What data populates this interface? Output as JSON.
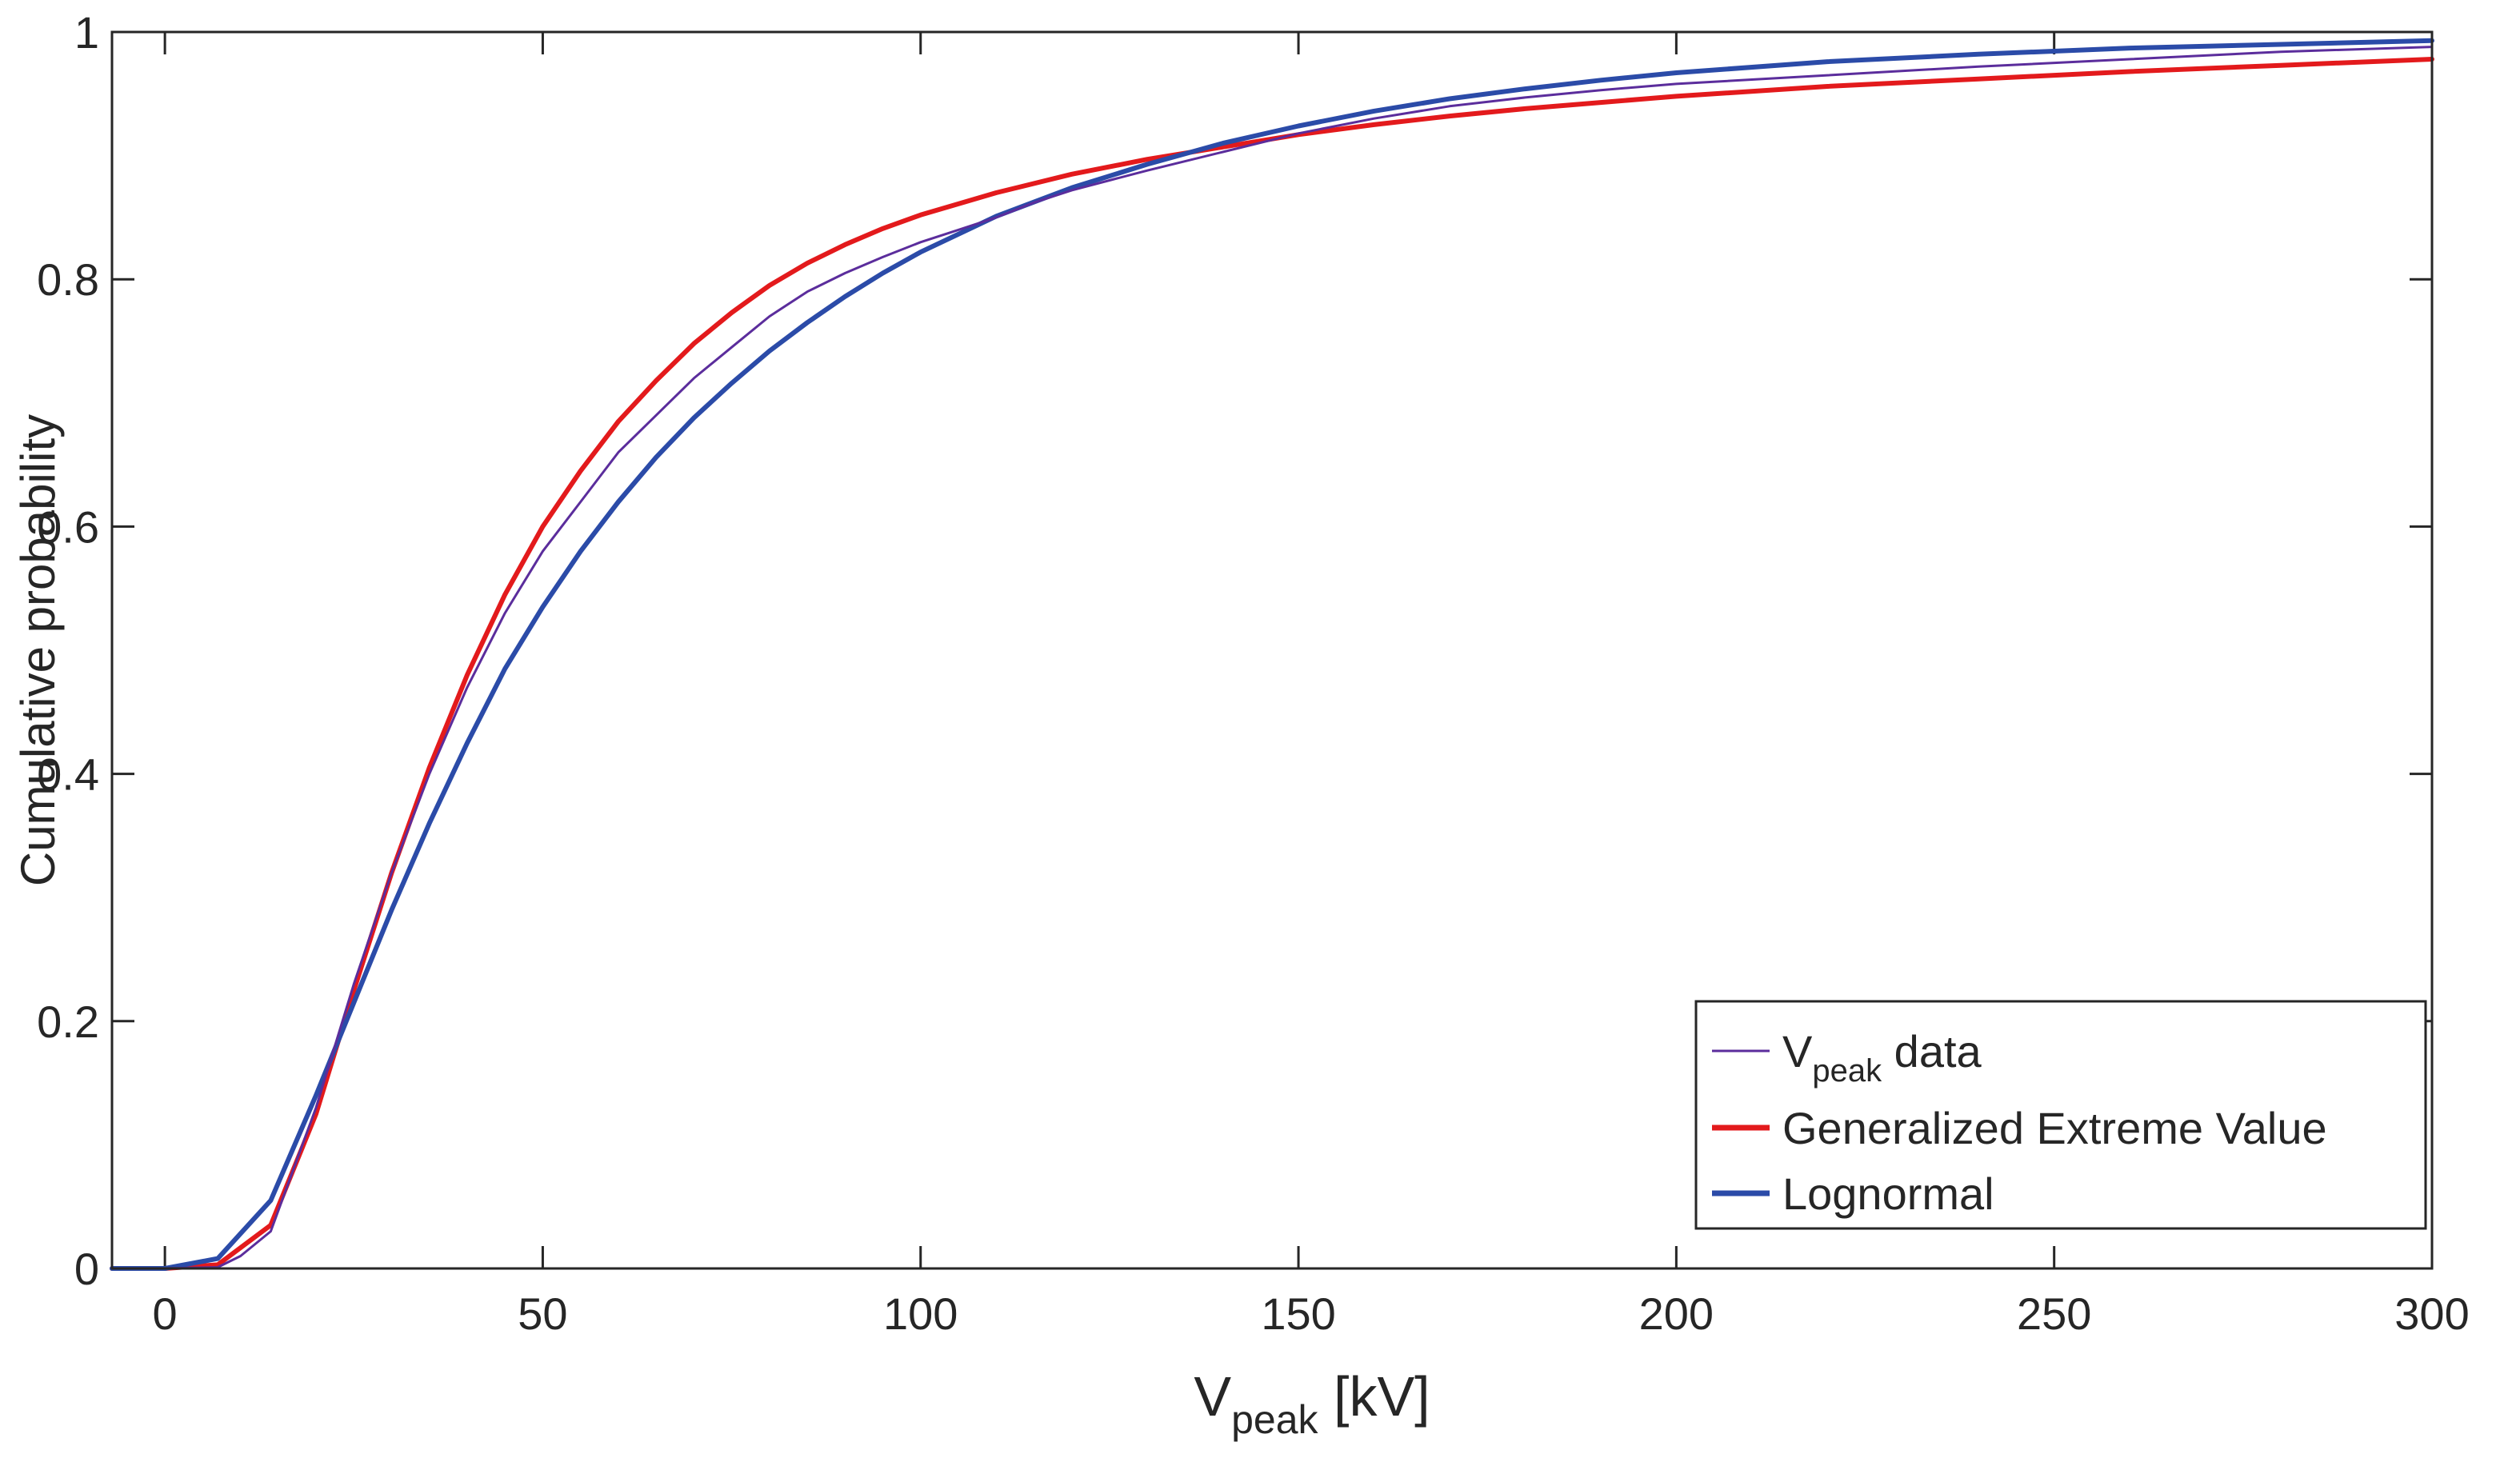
{
  "chart_data": {
    "type": "line",
    "xlabel": {
      "main": "V",
      "sub": "peak",
      "rest": " [kV]"
    },
    "ylabel": "Cumulative probability",
    "xlim": [
      -7,
      300
    ],
    "ylim": [
      0,
      1
    ],
    "xticks": [
      0,
      50,
      100,
      150,
      200,
      250,
      300
    ],
    "yticks": [
      0,
      0.2,
      0.4,
      0.6,
      0.8,
      1
    ],
    "ytick_labels": [
      "0",
      "0.2",
      "0.4",
      "0.6",
      "0.8",
      "1"
    ],
    "legend": {
      "location": "bottom-right",
      "entries": [
        {
          "main": "V",
          "sub": "peak",
          "rest": " data"
        },
        {
          "main": "Generalized Extreme Value",
          "sub": "",
          "rest": ""
        },
        {
          "main": "Lognormal",
          "sub": "",
          "rest": ""
        }
      ]
    },
    "series": [
      {
        "name": "Vpeak data",
        "color": "#5b2d9c",
        "width": "thin",
        "x": [
          -7,
          0,
          7,
          10,
          14,
          20,
          25,
          30,
          35,
          40,
          45,
          50,
          55,
          60,
          65,
          70,
          75,
          80,
          85,
          90,
          95,
          100,
          105,
          110,
          115,
          120,
          125,
          130,
          140,
          150,
          160,
          170,
          180,
          190,
          200,
          220,
          240,
          260,
          280,
          300
        ],
        "y": [
          0,
          0,
          0.001,
          0.01,
          0.03,
          0.13,
          0.23,
          0.32,
          0.4,
          0.47,
          0.53,
          0.58,
          0.62,
          0.66,
          0.69,
          0.72,
          0.745,
          0.77,
          0.79,
          0.805,
          0.818,
          0.83,
          0.84,
          0.85,
          0.862,
          0.872,
          0.88,
          0.888,
          0.903,
          0.918,
          0.93,
          0.94,
          0.947,
          0.953,
          0.958,
          0.965,
          0.972,
          0.978,
          0.984,
          0.988
        ]
      },
      {
        "name": "Generalized Extreme Value",
        "color": "#e31a1c",
        "width": "thick",
        "x": [
          -7,
          0,
          7,
          14,
          20,
          25,
          30,
          35,
          40,
          45,
          50,
          55,
          60,
          65,
          70,
          75,
          80,
          85,
          90,
          95,
          100,
          110,
          120,
          130,
          140,
          150,
          160,
          170,
          180,
          190,
          200,
          220,
          240,
          260,
          280,
          300
        ],
        "y": [
          0,
          0,
          0.003,
          0.035,
          0.125,
          0.225,
          0.32,
          0.405,
          0.48,
          0.545,
          0.6,
          0.645,
          0.685,
          0.718,
          0.748,
          0.773,
          0.795,
          0.813,
          0.828,
          0.841,
          0.852,
          0.87,
          0.885,
          0.897,
          0.907,
          0.917,
          0.925,
          0.932,
          0.938,
          0.943,
          0.948,
          0.956,
          0.962,
          0.968,
          0.973,
          0.978
        ]
      },
      {
        "name": "Lognormal",
        "color": "#2b4ba8",
        "width": "thick",
        "x": [
          -7,
          0,
          7,
          14,
          20,
          25,
          30,
          35,
          40,
          45,
          50,
          55,
          60,
          65,
          70,
          75,
          80,
          85,
          90,
          95,
          100,
          110,
          120,
          130,
          140,
          150,
          160,
          170,
          180,
          190,
          200,
          220,
          240,
          260,
          280,
          300
        ],
        "y": [
          0,
          0,
          0.008,
          0.055,
          0.14,
          0.215,
          0.29,
          0.36,
          0.425,
          0.485,
          0.535,
          0.58,
          0.62,
          0.656,
          0.688,
          0.716,
          0.742,
          0.765,
          0.786,
          0.805,
          0.822,
          0.851,
          0.874,
          0.893,
          0.91,
          0.924,
          0.936,
          0.946,
          0.954,
          0.961,
          0.967,
          0.976,
          0.982,
          0.987,
          0.99,
          0.993
        ]
      }
    ]
  }
}
